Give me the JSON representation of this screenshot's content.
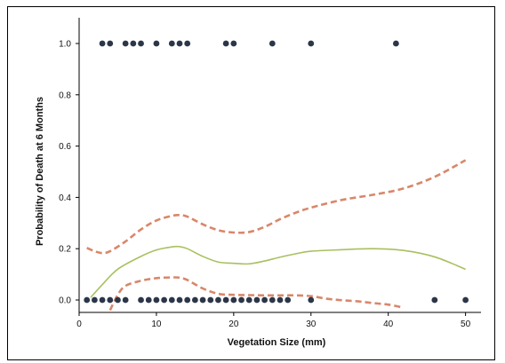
{
  "chart_data": {
    "type": "scatter",
    "title": "",
    "xlabel": "Vegetation Size (mm)",
    "ylabel": "Probability of Death at 6 Months",
    "xlim": [
      0,
      52
    ],
    "ylim": [
      -0.02,
      1.07
    ],
    "xticks": [
      0,
      10,
      20,
      30,
      40,
      50
    ],
    "yticks": [
      0.0,
      0.2,
      0.4,
      0.6,
      0.8,
      1.0
    ],
    "ytick_labels": [
      "0.0",
      "0.2",
      "0.4",
      "0.6",
      "0.8",
      "1.0"
    ],
    "grid": false,
    "legend": "none",
    "colors": {
      "points": "#2b3648",
      "estimate": "#a8c060",
      "confidence": "#d8876a",
      "axis": "#000000"
    },
    "series": [
      {
        "kind": "points",
        "x": [
          3,
          4,
          6,
          7,
          8,
          10,
          12,
          13,
          14,
          19,
          20,
          25,
          30,
          41,
          1,
          2,
          3,
          4,
          5,
          6,
          8,
          9,
          10,
          11,
          12,
          13,
          14,
          15,
          16,
          17,
          18,
          19,
          20,
          21,
          22,
          23,
          24,
          25,
          26,
          27,
          30,
          46,
          50
        ],
        "y": [
          1,
          1,
          1,
          1,
          1,
          1,
          1,
          1,
          1,
          1,
          1,
          1,
          1,
          1,
          0,
          0,
          0,
          0,
          0,
          0,
          0,
          0,
          0,
          0,
          0,
          0,
          0,
          0,
          0,
          0,
          0,
          0,
          0,
          0,
          0,
          0,
          0,
          0,
          0,
          0,
          0,
          0,
          0
        ]
      },
      {
        "kind": "estimate",
        "x": [
          1.5,
          3,
          5,
          8,
          10,
          12,
          13,
          14,
          16,
          18,
          20,
          22,
          24,
          26,
          28,
          30,
          34,
          38,
          42,
          46,
          50
        ],
        "y": [
          0.01,
          0.06,
          0.12,
          0.17,
          0.195,
          0.207,
          0.208,
          0.2,
          0.17,
          0.148,
          0.143,
          0.141,
          0.152,
          0.167,
          0.18,
          0.19,
          0.196,
          0.2,
          0.193,
          0.168,
          0.12
        ]
      },
      {
        "kind": "upper-confidence",
        "x": [
          1,
          2,
          3,
          4,
          6,
          8,
          10,
          12,
          13,
          14,
          16,
          18,
          20,
          22,
          24,
          26,
          28,
          30,
          34,
          38,
          42,
          46,
          50
        ],
        "y": [
          0.203,
          0.19,
          0.183,
          0.19,
          0.228,
          0.275,
          0.31,
          0.328,
          0.331,
          0.325,
          0.295,
          0.272,
          0.263,
          0.265,
          0.285,
          0.315,
          0.34,
          0.36,
          0.39,
          0.41,
          0.435,
          0.48,
          0.545
        ]
      },
      {
        "kind": "lower-confidence",
        "x": [
          4,
          5,
          6,
          8,
          10,
          12,
          13,
          14,
          16,
          18,
          20,
          22,
          24,
          26,
          28,
          30,
          32,
          34,
          36,
          38,
          40,
          42
        ],
        "y": [
          -0.04,
          0.02,
          0.055,
          0.075,
          0.085,
          0.088,
          0.087,
          0.078,
          0.045,
          0.024,
          0.02,
          0.019,
          0.018,
          0.018,
          0.018,
          0.015,
          0.005,
          -0.001,
          -0.005,
          -0.012,
          -0.018,
          -0.03
        ]
      }
    ]
  }
}
